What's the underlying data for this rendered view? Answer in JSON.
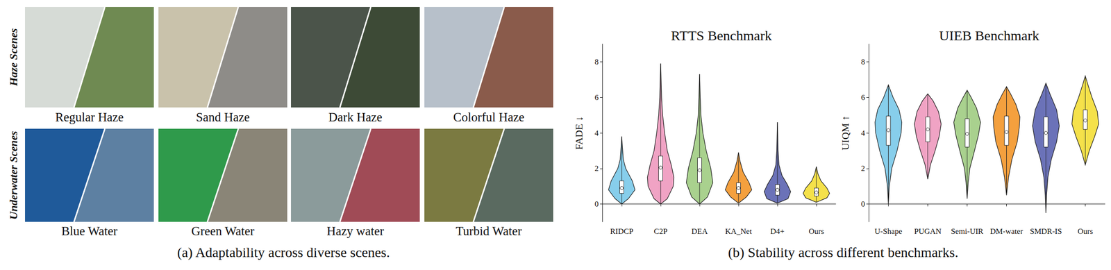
{
  "panel_a": {
    "caption": "(a) Adaptability across diverse scenes.",
    "rows": [
      {
        "label": "Haze Scenes",
        "scenes": [
          "Regular Haze",
          "Sand Haze",
          "Dark Haze",
          "Colorful Haze"
        ]
      },
      {
        "label": "Underwater Scenes",
        "scenes": [
          "Blue Water",
          "Green Water",
          "Hazy water",
          "Turbid Water"
        ]
      }
    ]
  },
  "panel_b": {
    "caption": "(b) Stability across different benchmarks."
  },
  "chart_data": [
    {
      "type": "violin",
      "title": "RTTS Benchmark",
      "y_label": "FADE ↓",
      "categories": [
        "RIDCP",
        "C2P",
        "DEA",
        "KA_Net",
        "D4+",
        "Ours"
      ],
      "colors": [
        "#87CEEB",
        "#F0A3C4",
        "#A9D18E",
        "#F4A03E",
        "#6B72B8",
        "#F5E14A"
      ],
      "ylim": [
        -1,
        9
      ],
      "yticks": [
        0,
        2,
        4,
        6,
        8
      ],
      "violins": [
        {
          "min": 0,
          "q1": 0.6,
          "median": 0.9,
          "q3": 1.3,
          "max": 3.8,
          "profile": [
            [
              0,
              0
            ],
            [
              0.3,
              0.5
            ],
            [
              0.8,
              1
            ],
            [
              1.3,
              0.8
            ],
            [
              2,
              0.3
            ],
            [
              2.5,
              0.12
            ],
            [
              3.2,
              0.05
            ],
            [
              3.8,
              0
            ]
          ]
        },
        {
          "min": 0,
          "q1": 1.3,
          "median": 2.05,
          "q3": 2.7,
          "max": 7.9,
          "profile": [
            [
              0,
              0
            ],
            [
              0.3,
              0.5
            ],
            [
              1.0,
              0.95
            ],
            [
              1.5,
              1
            ],
            [
              2.2,
              0.8
            ],
            [
              3,
              0.5
            ],
            [
              4,
              0.3
            ],
            [
              5,
              0.15
            ],
            [
              6,
              0.07
            ],
            [
              7.9,
              0
            ]
          ]
        },
        {
          "min": 0,
          "q1": 1.2,
          "median": 1.9,
          "q3": 2.6,
          "max": 7.3,
          "profile": [
            [
              0,
              0
            ],
            [
              0.4,
              0.6
            ],
            [
              1.2,
              1
            ],
            [
              2,
              0.85
            ],
            [
              3,
              0.5
            ],
            [
              4,
              0.25
            ],
            [
              5,
              0.1
            ],
            [
              6,
              0.05
            ],
            [
              7.3,
              0
            ]
          ]
        },
        {
          "min": 0.05,
          "q1": 0.6,
          "median": 0.9,
          "q3": 1.2,
          "max": 2.9,
          "profile": [
            [
              0.05,
              0
            ],
            [
              0.4,
              0.6
            ],
            [
              0.8,
              1
            ],
            [
              1.2,
              0.8
            ],
            [
              1.8,
              0.35
            ],
            [
              2.4,
              0.12
            ],
            [
              2.9,
              0
            ]
          ]
        },
        {
          "min": 0.05,
          "q1": 0.5,
          "median": 0.8,
          "q3": 1.1,
          "max": 4.6,
          "profile": [
            [
              0.05,
              0
            ],
            [
              0.3,
              0.8
            ],
            [
              0.7,
              1
            ],
            [
              1.1,
              0.75
            ],
            [
              1.6,
              0.35
            ],
            [
              2.2,
              0.12
            ],
            [
              3,
              0.05
            ],
            [
              4.6,
              0
            ]
          ]
        },
        {
          "min": 0.1,
          "q1": 0.45,
          "median": 0.65,
          "q3": 0.9,
          "max": 2.1,
          "profile": [
            [
              0.1,
              0
            ],
            [
              0.35,
              0.8
            ],
            [
              0.6,
              1
            ],
            [
              0.9,
              0.8
            ],
            [
              1.3,
              0.35
            ],
            [
              1.7,
              0.12
            ],
            [
              2.1,
              0
            ]
          ]
        }
      ]
    },
    {
      "type": "violin",
      "title": "UIEB Benchmark",
      "y_label": "UIQM ↑",
      "categories": [
        "U-Shape",
        "PUGAN",
        "Semi-UIR",
        "DM-water",
        "SMDR-IS",
        "Ours"
      ],
      "colors": [
        "#87CEEB",
        "#F0A3C4",
        "#A9D18E",
        "#F4A03E",
        "#6B72B8",
        "#F5E14A"
      ],
      "ylim": [
        -1,
        9
      ],
      "yticks": [
        0,
        2,
        4,
        6,
        8
      ],
      "violins": [
        {
          "min": 0,
          "q1": 3.3,
          "median": 4.15,
          "q3": 4.95,
          "max": 6.7,
          "profile": [
            [
              0,
              0
            ],
            [
              1,
              0.07
            ],
            [
              2,
              0.25
            ],
            [
              3,
              0.65
            ],
            [
              4,
              0.95
            ],
            [
              4.6,
              1
            ],
            [
              5.3,
              0.8
            ],
            [
              6,
              0.35
            ],
            [
              6.7,
              0
            ]
          ]
        },
        {
          "min": 1.4,
          "q1": 3.5,
          "median": 4.2,
          "q3": 4.9,
          "max": 6.2,
          "profile": [
            [
              1.4,
              0
            ],
            [
              2.2,
              0.2
            ],
            [
              3,
              0.55
            ],
            [
              3.8,
              0.85
            ],
            [
              4.5,
              1
            ],
            [
              5.2,
              0.8
            ],
            [
              5.8,
              0.4
            ],
            [
              6.2,
              0
            ]
          ]
        },
        {
          "min": 0.3,
          "q1": 3.2,
          "median": 3.95,
          "q3": 4.8,
          "max": 6.4,
          "profile": [
            [
              0.3,
              0
            ],
            [
              1.2,
              0.08
            ],
            [
              2,
              0.2
            ],
            [
              3,
              0.55
            ],
            [
              3.9,
              0.85
            ],
            [
              4.6,
              1
            ],
            [
              5.4,
              0.7
            ],
            [
              6,
              0.3
            ],
            [
              6.4,
              0
            ]
          ]
        },
        {
          "min": 0.5,
          "q1": 3.3,
          "median": 4.05,
          "q3": 4.95,
          "max": 6.6,
          "profile": [
            [
              0.5,
              0
            ],
            [
              1.5,
              0.15
            ],
            [
              2.5,
              0.4
            ],
            [
              3.5,
              0.8
            ],
            [
              4.3,
              0.95
            ],
            [
              4.9,
              1
            ],
            [
              5.6,
              0.7
            ],
            [
              6.2,
              0.3
            ],
            [
              6.6,
              0
            ]
          ]
        },
        {
          "min": -0.5,
          "q1": 3.2,
          "median": 4.0,
          "q3": 4.9,
          "max": 6.8,
          "profile": [
            [
              -0.5,
              0
            ],
            [
              0.5,
              0.05
            ],
            [
              1.5,
              0.15
            ],
            [
              2.5,
              0.4
            ],
            [
              3.5,
              0.8
            ],
            [
              4.4,
              1
            ],
            [
              5.3,
              0.8
            ],
            [
              6.2,
              0.3
            ],
            [
              6.8,
              0
            ]
          ]
        },
        {
          "min": 2.2,
          "q1": 4.2,
          "median": 4.7,
          "q3": 5.3,
          "max": 7.2,
          "profile": [
            [
              2.2,
              0
            ],
            [
              3,
              0.3
            ],
            [
              3.8,
              0.7
            ],
            [
              4.5,
              1
            ],
            [
              5.2,
              0.9
            ],
            [
              6,
              0.5
            ],
            [
              6.7,
              0.2
            ],
            [
              7.2,
              0
            ]
          ]
        }
      ]
    }
  ]
}
